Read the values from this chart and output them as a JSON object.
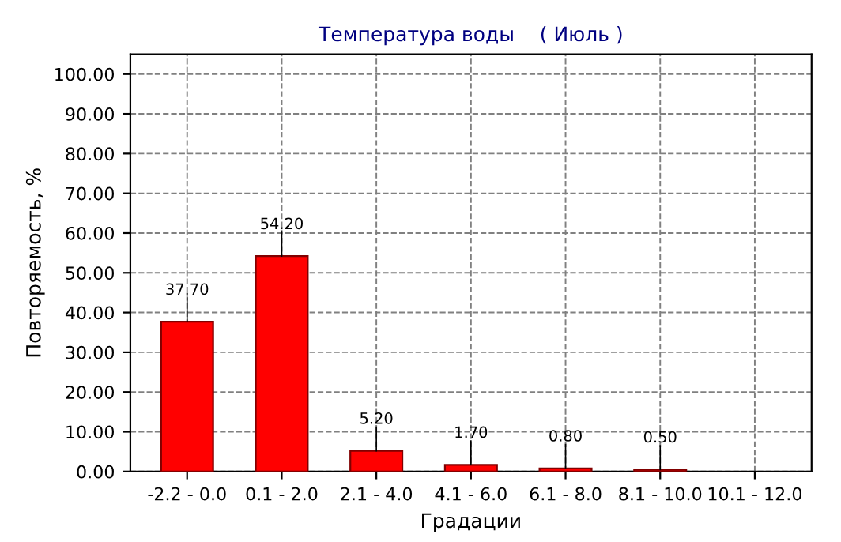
{
  "chart_data": {
    "type": "bar",
    "title": "Температура воды    ( Июль )",
    "xlabel": "Градации",
    "ylabel": "Повторяемость, %",
    "categories": [
      "-2.2 - 0.0",
      "0.1 - 2.0",
      "2.1 - 4.0",
      "4.1 - 6.0",
      "6.1 - 8.0",
      "8.1 - 10.0",
      "10.1 - 12.0"
    ],
    "values": [
      37.7,
      54.2,
      5.2,
      1.7,
      0.8,
      0.5,
      null
    ],
    "value_labels": [
      "37.70",
      "54.20",
      "5.20",
      "1.70",
      "0.80",
      "0.50",
      null
    ],
    "color": "#ff0000",
    "ylim": [
      0,
      105
    ],
    "yticks": [
      {
        "value": 0,
        "label": "0.00"
      },
      {
        "value": 10,
        "label": "10.00"
      },
      {
        "value": 20,
        "label": "20.00"
      },
      {
        "value": 30,
        "label": "30.00"
      },
      {
        "value": 40,
        "label": "40.00"
      },
      {
        "value": 50,
        "label": "50.00"
      },
      {
        "value": 60,
        "label": "60.00"
      },
      {
        "value": 70,
        "label": "70.00"
      },
      {
        "value": 80,
        "label": "80.00"
      },
      {
        "value": 90,
        "label": "90.00"
      },
      {
        "value": 100,
        "label": "100.00"
      }
    ],
    "grid": true
  }
}
